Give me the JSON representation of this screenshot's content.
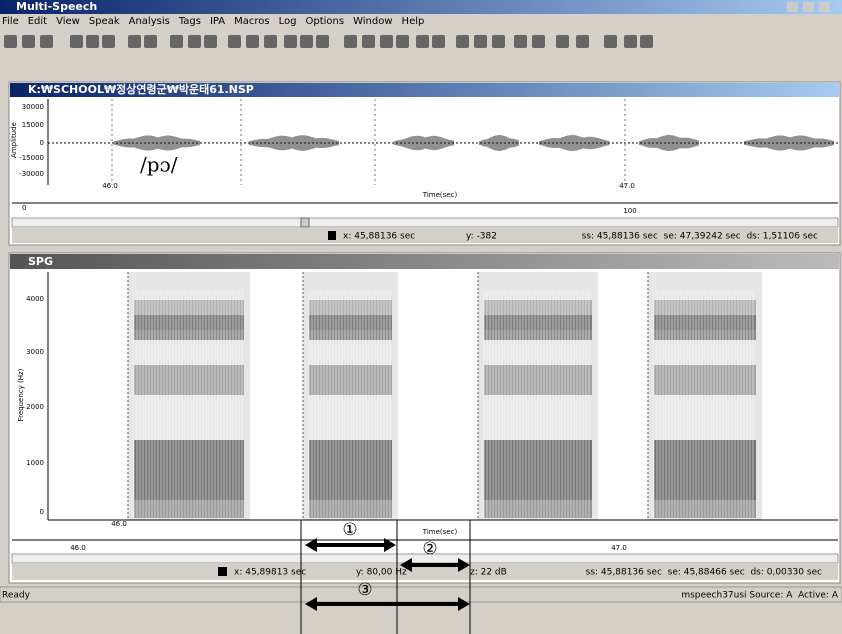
{
  "app_title": "Multi-Speech",
  "menu": [
    "File",
    "Edit",
    "View",
    "Speak",
    "Analysis",
    "Tags",
    "IPA",
    "Macros",
    "Log",
    "Options",
    "Window",
    "Help"
  ],
  "waveform_window": {
    "title": "K:₩SCHOOL₩정상연령군₩박운태61.NSP",
    "y_label": "Amplitude",
    "y_ticks": [
      "30000",
      "15000",
      "0",
      "-15000",
      "-30000"
    ],
    "annotation": "/pɔ/",
    "x_ticks": [
      "46.0",
      "47.0"
    ],
    "x_label": "Time(sec)",
    "ruler": [
      "0",
      "100"
    ],
    "status": {
      "x": "x: 45,88136 sec",
      "y": "y: -382",
      "selection": "ss: 45,88136 sec  se: 47,39242 sec  ds: 1,51106 sec"
    }
  },
  "spectrogram_window": {
    "title": "SPG",
    "y_label": "Frequency (Hz)",
    "y_ticks": [
      "4000",
      "3000",
      "2000",
      "1000",
      "0"
    ],
    "x_ticks": [
      "46.0"
    ],
    "x_label": "Time(sec)",
    "ruler": [
      "46.0",
      "47.0"
    ],
    "status": {
      "x": "x: 45,89813 sec",
      "y": "y: 80,00 Hz",
      "z": "z: 22 dB",
      "selection": "ss: 45,88136 sec  se: 45,88466 sec  ds: 0,00330 sec"
    }
  },
  "markers": [
    "①",
    "②",
    "③"
  ],
  "status_bar": {
    "left": "Ready",
    "right": "mspeech37usi Source: A  Active: A"
  }
}
